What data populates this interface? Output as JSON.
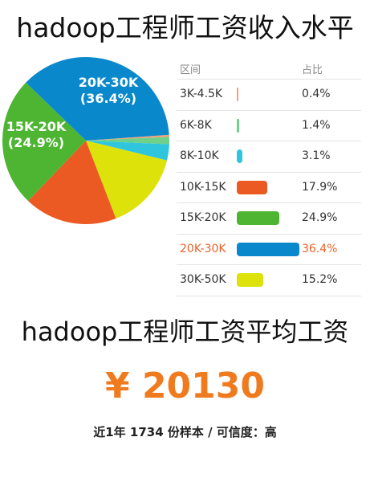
{
  "page": {
    "title": "hadoop工程师工资收入水平",
    "avg_title": "hadoop工程师工资平均工资",
    "currency_symbol": "¥",
    "avg_salary": "20130",
    "salary_color": "#f07b1f",
    "footnote": "近1年 1734 份样本 / 可信度：高"
  },
  "chart_data": {
    "type": "pie",
    "title": "hadoop工程师工资收入水平",
    "column_headers": [
      "区间",
      "占比"
    ],
    "categories": [
      "3K-4.5K",
      "6K-8K",
      "8K-10K",
      "10K-15K",
      "15K-20K",
      "20K-30K",
      "30K-50K"
    ],
    "values": [
      0.4,
      1.4,
      3.1,
      17.9,
      24.9,
      36.4,
      15.2
    ],
    "labels": [
      "0.4%",
      "1.4%",
      "3.1%",
      "17.9%",
      "24.9%",
      "36.4%",
      "15.2%"
    ],
    "colors": [
      "#f0a27a",
      "#6fd08a",
      "#2fc6dd",
      "#ec5a24",
      "#4eb533",
      "#0a88cc",
      "#dde20a"
    ],
    "highlight": "20K-30K",
    "highlight_color": "#e8632a",
    "slice_labels": [
      {
        "category": "20K-30K",
        "lines": [
          "20K-30K",
          "(36.4%)"
        ]
      },
      {
        "category": "15K-20K",
        "lines": [
          "15K-20K",
          "(24.9%)"
        ]
      }
    ]
  }
}
